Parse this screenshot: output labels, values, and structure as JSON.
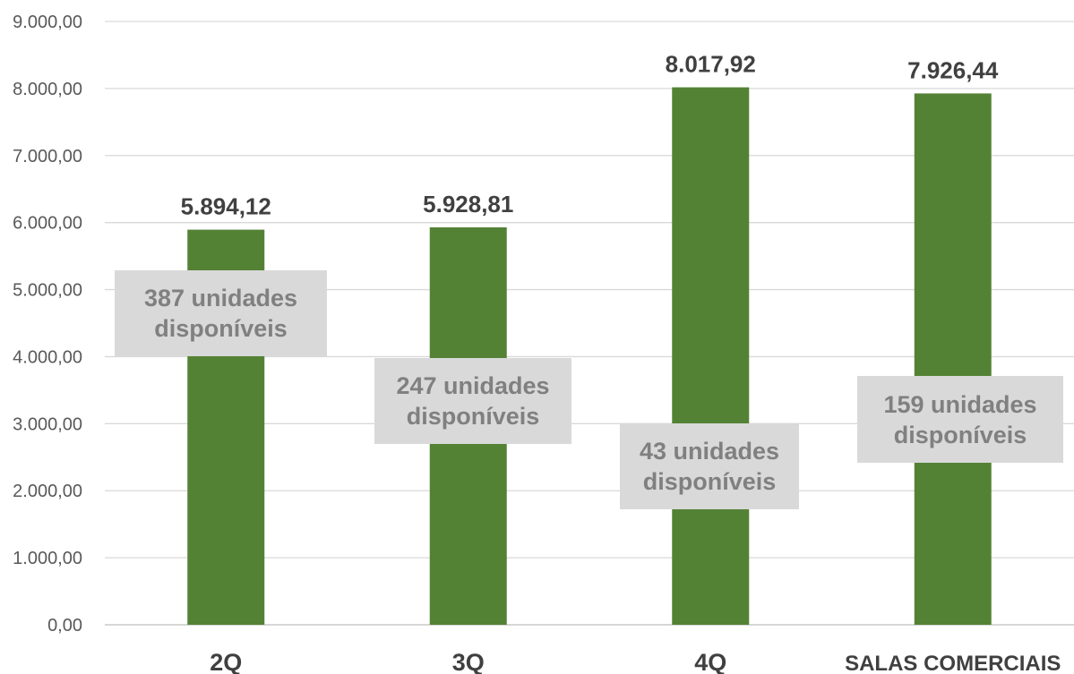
{
  "chart_data": {
    "type": "bar",
    "categories": [
      "2Q",
      "3Q",
      "4Q",
      "SALAS COMERCIAIS"
    ],
    "values": [
      5894.12,
      5928.81,
      8017.92,
      7926.44
    ],
    "data_labels": [
      "5.894,12",
      "5.928,81",
      "8.017,92",
      "7.926,44"
    ],
    "y_ticks": [
      "0,00",
      "1.000,00",
      "2.000,00",
      "3.000,00",
      "4.000,00",
      "5.000,00",
      "6.000,00",
      "7.000,00",
      "8.000,00",
      "9.000,00"
    ],
    "ylim": [
      0,
      9000
    ],
    "grid": true,
    "legend": "none",
    "bar_color": "#548235",
    "annotations": [
      {
        "line1": "387 unidades",
        "line2": "disponíveis"
      },
      {
        "line1": "247 unidades",
        "line2": "disponíveis"
      },
      {
        "line1": "43 unidades",
        "line2": "disponíveis"
      },
      {
        "line1": "159 unidades",
        "line2": "disponíveis"
      }
    ]
  }
}
